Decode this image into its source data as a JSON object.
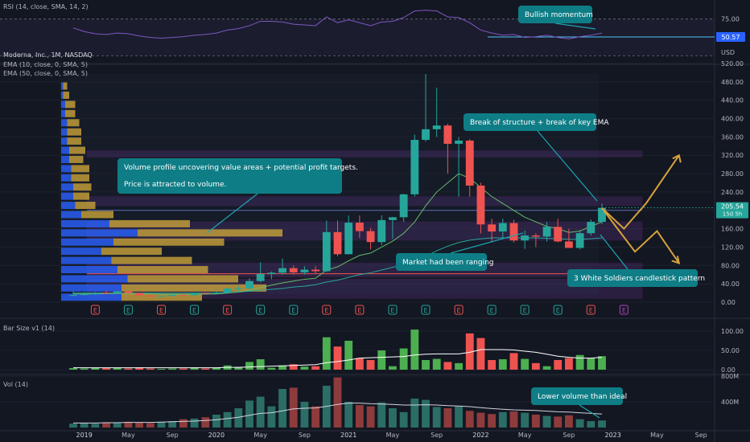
{
  "header": {
    "rsi_label": "RSI (14, close, SMA, 14, 2)",
    "symbol_label": "Moderna, Inc., 1M, NASDAQ",
    "ema10_label": "EMA (10, close, 0, SMA, 5)",
    "ema50_label": "EMA (50, close, 0, SMA, 5)",
    "bar_size_label": "Bar Size v1 (14)",
    "vol_label": "Vol (14)",
    "currency": "USD"
  },
  "colors": {
    "background": "#131722",
    "bull": "#26a69a",
    "bear": "#ef5350",
    "callout": "#0f7d86",
    "zone": "#7b3fa8",
    "arrow": "#d7a33a",
    "volume_profile_up": "#2962ff",
    "volume_profile_down": "#c9a23b"
  },
  "annotations": {
    "volume_profile": "Volume profile uncovering value areas + potential profit targets.",
    "attracted": "Price is attracted to volume.",
    "break_structure": "Break of structure + break of key EMA",
    "ranging": "Market had been ranging",
    "three_soldiers": "3 White Soldiers candlestick pattern",
    "bullish_momentum": "Bullish momentum",
    "lower_volume": "Lower volume than ideal"
  },
  "price_axis_ticks": [
    "520.00",
    "480.00",
    "440.00",
    "400.00",
    "360.00",
    "320.00",
    "280.00",
    "240.00",
    "200.00",
    "160.00",
    "120.00",
    "80.00",
    "40.00",
    "0.00"
  ],
  "rsi_axis_ticks": [
    "75.00",
    "50.57"
  ],
  "barsize_axis_ticks": [
    "100.00",
    "50.00",
    "0.00"
  ],
  "vol_axis_ticks": [
    "800M",
    "400M"
  ],
  "last_price": "205.54",
  "countdown": "15d 5h",
  "time_axis": [
    "2019",
    "May",
    "Sep",
    "2020",
    "May",
    "Sep",
    "2021",
    "May",
    "Sep",
    "2022",
    "May",
    "Sep",
    "2023",
    "May",
    "Sep"
  ],
  "chart_data": {
    "type": "candlestick",
    "title": "Moderna, Inc., 1M, NASDAQ",
    "interval": "1M",
    "y_axis_label": "USD",
    "ylim": [
      0,
      530
    ],
    "x_start": "2018-12",
    "x_end": "2023-10",
    "candles": [
      {
        "d": "2018-12",
        "o": 15.0,
        "h": 24.0,
        "l": 13.0,
        "c": 15.5
      },
      {
        "d": "2019-01",
        "o": 15.5,
        "h": 22.0,
        "l": 14.0,
        "c": 17.2
      },
      {
        "d": "2019-02",
        "o": 17.2,
        "h": 22.0,
        "l": 15.5,
        "c": 20.5
      },
      {
        "d": "2019-03",
        "o": 20.5,
        "h": 25.0,
        "l": 18.0,
        "c": 20.3
      },
      {
        "d": "2019-04",
        "o": 20.3,
        "h": 25.0,
        "l": 18.5,
        "c": 23.5
      },
      {
        "d": "2019-05",
        "o": 23.5,
        "h": 24.5,
        "l": 19.0,
        "c": 20.0
      },
      {
        "d": "2019-06",
        "o": 20.0,
        "h": 21.0,
        "l": 14.5,
        "c": 14.7
      },
      {
        "d": "2019-07",
        "o": 14.7,
        "h": 15.5,
        "l": 12.5,
        "c": 12.5
      },
      {
        "d": "2019-08",
        "o": 12.5,
        "h": 14.0,
        "l": 12.0,
        "c": 13.6
      },
      {
        "d": "2019-09",
        "o": 13.6,
        "h": 16.5,
        "l": 13.0,
        "c": 15.9
      },
      {
        "d": "2019-10",
        "o": 15.9,
        "h": 17.0,
        "l": 14.0,
        "c": 15.1
      },
      {
        "d": "2019-11",
        "o": 15.1,
        "h": 21.0,
        "l": 15.0,
        "c": 20.2
      },
      {
        "d": "2019-12",
        "o": 20.2,
        "h": 21.0,
        "l": 17.0,
        "c": 19.6
      },
      {
        "d": "2020-01",
        "o": 19.6,
        "h": 24.0,
        "l": 18.5,
        "c": 20.2
      },
      {
        "d": "2020-02",
        "o": 20.2,
        "h": 31.0,
        "l": 18.0,
        "c": 29.7
      },
      {
        "d": "2020-03",
        "o": 29.7,
        "h": 36.0,
        "l": 21.0,
        "c": 29.9
      },
      {
        "d": "2020-04",
        "o": 29.9,
        "h": 52.0,
        "l": 29.0,
        "c": 46.0
      },
      {
        "d": "2020-05",
        "o": 46.0,
        "h": 87.0,
        "l": 43.0,
        "c": 61.4
      },
      {
        "d": "2020-06",
        "o": 61.4,
        "h": 67.0,
        "l": 50.0,
        "c": 64.2
      },
      {
        "d": "2020-07",
        "o": 64.2,
        "h": 95.0,
        "l": 60.0,
        "c": 74.1
      },
      {
        "d": "2020-08",
        "o": 74.1,
        "h": 80.0,
        "l": 60.0,
        "c": 64.9
      },
      {
        "d": "2020-09",
        "o": 64.9,
        "h": 78.0,
        "l": 60.0,
        "c": 70.8
      },
      {
        "d": "2020-10",
        "o": 70.8,
        "h": 78.0,
        "l": 62.0,
        "c": 67.5
      },
      {
        "d": "2020-11",
        "o": 67.5,
        "h": 178.0,
        "l": 66.0,
        "c": 152.7
      },
      {
        "d": "2020-12",
        "o": 152.7,
        "h": 178.0,
        "l": 100.0,
        "c": 104.5
      },
      {
        "d": "2021-01",
        "o": 104.5,
        "h": 189.0,
        "l": 104.0,
        "c": 173.2
      },
      {
        "d": "2021-02",
        "o": 173.2,
        "h": 189.0,
        "l": 140.0,
        "c": 154.8
      },
      {
        "d": "2021-03",
        "o": 154.8,
        "h": 162.0,
        "l": 115.0,
        "c": 131.0
      },
      {
        "d": "2021-04",
        "o": 131.0,
        "h": 189.0,
        "l": 124.0,
        "c": 178.8
      },
      {
        "d": "2021-05",
        "o": 178.8,
        "h": 186.0,
        "l": 138.0,
        "c": 185.0
      },
      {
        "d": "2021-06",
        "o": 185.0,
        "h": 236.0,
        "l": 175.0,
        "c": 235.0
      },
      {
        "d": "2021-07",
        "o": 235.0,
        "h": 365.0,
        "l": 230.0,
        "c": 353.6
      },
      {
        "d": "2021-08",
        "o": 353.6,
        "h": 497.0,
        "l": 350.0,
        "c": 376.7
      },
      {
        "d": "2021-09",
        "o": 376.7,
        "h": 467.0,
        "l": 360.0,
        "c": 384.9
      },
      {
        "d": "2021-10",
        "o": 384.9,
        "h": 389.0,
        "l": 280.0,
        "c": 345.0
      },
      {
        "d": "2021-11",
        "o": 345.0,
        "h": 360.0,
        "l": 230.0,
        "c": 352.0
      },
      {
        "d": "2021-12",
        "o": 352.0,
        "h": 355.0,
        "l": 230.0,
        "c": 254.0
      },
      {
        "d": "2022-01",
        "o": 254.0,
        "h": 260.0,
        "l": 150.0,
        "c": 169.3
      },
      {
        "d": "2022-02",
        "o": 169.3,
        "h": 182.0,
        "l": 130.0,
        "c": 154.0
      },
      {
        "d": "2022-03",
        "o": 154.0,
        "h": 182.0,
        "l": 140.0,
        "c": 172.3
      },
      {
        "d": "2022-04",
        "o": 172.3,
        "h": 180.0,
        "l": 130.0,
        "c": 134.4
      },
      {
        "d": "2022-05",
        "o": 134.4,
        "h": 156.0,
        "l": 116.0,
        "c": 145.3
      },
      {
        "d": "2022-06",
        "o": 145.3,
        "h": 150.0,
        "l": 120.0,
        "c": 142.8
      },
      {
        "d": "2022-07",
        "o": 142.8,
        "h": 175.0,
        "l": 132.0,
        "c": 164.1
      },
      {
        "d": "2022-08",
        "o": 164.1,
        "h": 182.0,
        "l": 130.0,
        "c": 132.3
      },
      {
        "d": "2022-09",
        "o": 132.3,
        "h": 160.0,
        "l": 118.0,
        "c": 118.2
      },
      {
        "d": "2022-10",
        "o": 118.2,
        "h": 157.0,
        "l": 115.0,
        "c": 150.3
      },
      {
        "d": "2022-11",
        "o": 150.3,
        "h": 180.0,
        "l": 145.0,
        "c": 175.0
      },
      {
        "d": "2022-12",
        "o": 175.0,
        "h": 215.0,
        "l": 170.0,
        "c": 205.5
      }
    ],
    "ema10": [
      18,
      18,
      18,
      18.5,
      19,
      19.5,
      19,
      18,
      17.5,
      17,
      16.8,
      17,
      17.5,
      18,
      20,
      22,
      26,
      32,
      37,
      42,
      46,
      50,
      52,
      70,
      77,
      90,
      102,
      107,
      120,
      133,
      150,
      175,
      210,
      240,
      260,
      280,
      270,
      250,
      230,
      215,
      200,
      185,
      175,
      165,
      160,
      152,
      155,
      165,
      175
    ],
    "ema50": [
      20,
      20,
      20,
      20,
      20,
      20,
      20,
      20,
      20,
      20,
      20,
      20,
      20,
      20,
      21,
      22,
      24,
      26,
      28,
      30,
      33,
      35,
      38,
      44,
      48,
      54,
      60,
      64,
      70,
      76,
      82,
      90,
      100,
      112,
      122,
      130,
      135,
      138,
      140,
      140,
      140,
      140,
      140,
      139,
      138,
      137,
      137,
      138,
      140
    ],
    "zones": [
      {
        "low": 316,
        "high": 330
      },
      {
        "low": 210,
        "high": 230
      },
      {
        "low": 135,
        "high": 175
      },
      {
        "low": 55,
        "high": 85
      },
      {
        "low": 8,
        "high": 50
      }
    ],
    "horizontal_lines": [
      62,
      200
    ],
    "volume_profile": [
      {
        "price": 10,
        "up": 0.3,
        "down": 0.4
      },
      {
        "price": 30,
        "up": 0.3,
        "down": 0.72
      },
      {
        "price": 50,
        "up": 0.33,
        "down": 0.55
      },
      {
        "price": 70,
        "up": 0.28,
        "down": 0.45
      },
      {
        "price": 90,
        "up": 0.25,
        "down": 0.4
      },
      {
        "price": 110,
        "up": 0.2,
        "down": 0.3
      },
      {
        "price": 130,
        "up": 0.26,
        "down": 0.55
      },
      {
        "price": 150,
        "up": 0.38,
        "down": 0.72
      },
      {
        "price": 170,
        "up": 0.24,
        "down": 0.4
      },
      {
        "price": 190,
        "up": 0.1,
        "down": 0.16
      },
      {
        "price": 210,
        "up": 0.07,
        "down": 0.1
      },
      {
        "price": 230,
        "up": 0.06,
        "down": 0.08
      },
      {
        "price": 250,
        "up": 0.06,
        "down": 0.09
      },
      {
        "price": 270,
        "up": 0.05,
        "down": 0.09
      },
      {
        "price": 290,
        "up": 0.05,
        "down": 0.09
      },
      {
        "price": 310,
        "up": 0.04,
        "down": 0.07
      },
      {
        "price": 330,
        "up": 0.04,
        "down": 0.08
      },
      {
        "price": 350,
        "up": 0.03,
        "down": 0.07
      },
      {
        "price": 370,
        "up": 0.03,
        "down": 0.07
      },
      {
        "price": 390,
        "up": 0.03,
        "down": 0.06
      },
      {
        "price": 410,
        "up": 0.02,
        "down": 0.05
      },
      {
        "price": 430,
        "up": 0.02,
        "down": 0.05
      },
      {
        "price": 450,
        "up": 0.01,
        "down": 0.03
      },
      {
        "price": 470,
        "up": 0.01,
        "down": 0.02
      }
    ],
    "projection": [
      {
        "d": "2022-12",
        "p": 205
      },
      {
        "d": "2023-02",
        "p": 160
      },
      {
        "d": "2023-04",
        "p": 215
      },
      {
        "d": "2023-07",
        "p": 320
      }
    ],
    "projection_alt": [
      {
        "d": "2022-12",
        "p": 205
      },
      {
        "d": "2023-03",
        "p": 110
      },
      {
        "d": "2023-05",
        "p": 155
      },
      {
        "d": "2023-07",
        "p": 85
      }
    ],
    "earnings": [
      {
        "d": "2019-02",
        "t": "E",
        "kind": "neg"
      },
      {
        "d": "2019-05",
        "t": "E",
        "kind": "pos"
      },
      {
        "d": "2019-08",
        "t": "E",
        "kind": "neg"
      },
      {
        "d": "2019-11",
        "t": "E",
        "kind": "pos"
      },
      {
        "d": "2020-02",
        "t": "E",
        "kind": "neg"
      },
      {
        "d": "2020-05",
        "t": "E",
        "kind": "pos"
      },
      {
        "d": "2020-08",
        "t": "E",
        "kind": "pos"
      },
      {
        "d": "2020-11",
        "t": "E",
        "kind": "neg"
      },
      {
        "d": "2021-02",
        "t": "E",
        "kind": "neg"
      },
      {
        "d": "2021-05",
        "t": "E",
        "kind": "pos"
      },
      {
        "d": "2021-08",
        "t": "E",
        "kind": "pos"
      },
      {
        "d": "2021-11",
        "t": "E",
        "kind": "neg"
      },
      {
        "d": "2022-02",
        "t": "E",
        "kind": "pos"
      },
      {
        "d": "2022-05",
        "t": "E",
        "kind": "pos"
      },
      {
        "d": "2022-08",
        "t": "E",
        "kind": "pos"
      },
      {
        "d": "2022-11",
        "t": "E",
        "kind": "neg"
      },
      {
        "d": "2023-02",
        "t": "E",
        "kind": "future"
      }
    ],
    "rsi": {
      "ylim": [
        20,
        90
      ],
      "level": 50.57,
      "values": [
        63,
        58,
        55,
        54,
        56,
        55,
        52,
        50,
        49,
        50,
        51,
        53,
        54,
        56,
        60,
        62,
        66,
        72,
        72,
        71,
        68,
        67,
        66,
        78,
        70,
        74,
        70,
        66,
        71,
        72,
        77,
        86,
        87,
        86,
        78,
        77,
        70,
        60,
        56,
        53,
        54,
        50,
        51,
        53,
        50,
        48,
        51,
        53,
        56
      ]
    },
    "bar_size": {
      "ylim": [
        0,
        120
      ],
      "values": [
        4,
        3,
        5,
        4,
        5,
        3,
        6,
        3,
        2,
        3,
        3,
        6,
        3,
        5,
        11,
        7,
        20,
        27,
        5,
        11,
        14,
        8,
        9,
        84,
        60,
        75,
        30,
        25,
        50,
        9,
        55,
        104,
        25,
        28,
        20,
        17,
        94,
        82,
        25,
        27,
        43,
        28,
        17,
        9,
        25,
        30,
        38,
        30,
        35
      ],
      "sma": [
        5,
        5,
        5,
        5,
        5,
        5,
        5,
        5,
        5,
        5,
        5,
        5,
        5,
        5,
        6,
        6,
        7,
        8,
        9,
        10,
        11,
        12,
        13,
        18,
        21,
        25,
        30,
        31,
        32,
        33,
        34,
        38,
        40,
        41,
        41,
        41,
        45,
        52,
        52,
        52,
        51,
        48,
        45,
        40,
        35,
        32,
        30,
        30,
        32
      ]
    },
    "volume": {
      "ylim": [
        0,
        800
      ],
      "values": [
        60,
        70,
        60,
        80,
        70,
        90,
        80,
        70,
        90,
        100,
        130,
        140,
        160,
        200,
        240,
        300,
        420,
        480,
        330,
        600,
        620,
        400,
        330,
        650,
        780,
        400,
        350,
        330,
        390,
        300,
        240,
        450,
        430,
        320,
        300,
        330,
        260,
        230,
        210,
        240,
        250,
        230,
        200,
        180,
        170,
        190,
        130,
        100,
        110
      ],
      "sma": [
        70,
        70,
        70,
        75,
        75,
        80,
        80,
        80,
        85,
        90,
        95,
        100,
        110,
        120,
        140,
        160,
        190,
        220,
        230,
        260,
        290,
        300,
        305,
        330,
        360,
        380,
        380,
        370,
        365,
        360,
        350,
        350,
        355,
        350,
        340,
        335,
        325,
        310,
        295,
        285,
        275,
        270,
        265,
        255,
        245,
        240,
        230,
        220,
        210
      ]
    }
  }
}
